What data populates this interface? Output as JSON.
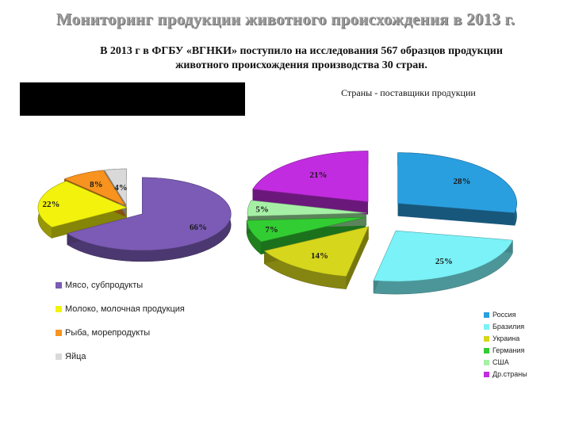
{
  "slide": {
    "title": "Мониторинг продукции животного происхождения в 2013 г.",
    "subtitle_line1": "В  2013 г в ФГБУ «ВГНКИ»  поступило на исследования 567 образцов продукции",
    "subtitle_line2": "животного происхождения  производства 30 стран."
  },
  "chart_data": [
    {
      "type": "pie",
      "title": "",
      "categories": [
        "Мясо, субпродукты",
        "Молоко, молочная продукция",
        "Рыба, морепродукты",
        "Яйца"
      ],
      "values": [
        66,
        22,
        8,
        4
      ],
      "value_labels": [
        "66%",
        "22%",
        "8%",
        "4%"
      ],
      "colors": [
        "#7b5bb5",
        "#f2f20c",
        "#f7931e",
        "#d9d9d9"
      ],
      "legend_position": "bottom-left",
      "exploded_slices": [
        "Мясо, субпродукты"
      ]
    },
    {
      "type": "pie",
      "title": "Страны - поставщики продукции",
      "categories": [
        "Россия",
        "Бразилия",
        "Украина",
        "Германия",
        "США",
        "Др.страны"
      ],
      "values": [
        28,
        25,
        14,
        7,
        5,
        21
      ],
      "value_labels": [
        "28%",
        "25%",
        "14%",
        "7%",
        "5%",
        "21%"
      ],
      "colors": [
        "#2a9fe0",
        "#7af2f7",
        "#d6d61c",
        "#32cd32",
        "#a6f0a6",
        "#c22ce0"
      ],
      "legend_position": "bottom-right",
      "exploded": true
    }
  ]
}
